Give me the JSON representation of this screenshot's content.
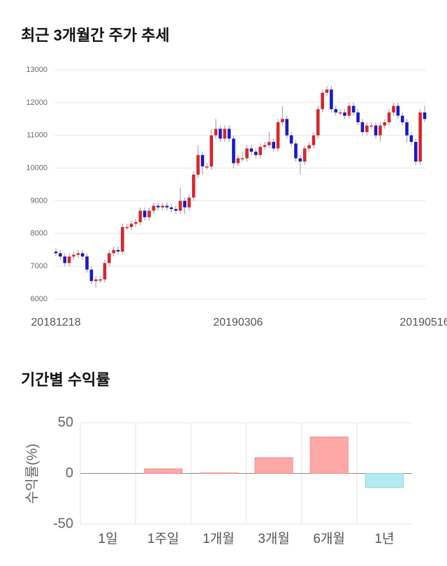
{
  "chart_data": [
    {
      "type": "candlestick",
      "title": "최근 3개월간 주가 추세",
      "categories": [
        "20181218",
        null,
        null,
        null,
        null,
        null,
        null,
        null,
        null,
        null,
        null,
        null,
        null,
        null,
        null,
        null,
        null,
        null,
        null,
        null,
        null,
        null,
        null,
        null,
        null,
        null,
        null,
        null,
        null,
        null,
        null,
        null,
        null,
        null,
        null,
        null,
        null,
        null,
        null,
        null,
        null,
        "20190306",
        null,
        null,
        null,
        null,
        null,
        null,
        null,
        null,
        null,
        null,
        null,
        null,
        null,
        null,
        null,
        null,
        null,
        null,
        null,
        null,
        null,
        null,
        null,
        null,
        null,
        null,
        null,
        null,
        null,
        null,
        null,
        null,
        null,
        null,
        null,
        null,
        null,
        null,
        null,
        null,
        null,
        "20190516"
      ],
      "open": [
        7450,
        7400,
        7300,
        7100,
        7300,
        7350,
        7400,
        7300,
        6900,
        6550,
        6600,
        6600,
        7100,
        7400,
        7500,
        7450,
        8200,
        8200,
        8300,
        8350,
        8700,
        8500,
        8700,
        8850,
        8800,
        8850,
        8800,
        8750,
        8700,
        9000,
        8800,
        9100,
        9800,
        10400,
        10050,
        10050,
        11000,
        11200,
        10900,
        11200,
        10900,
        10150,
        10300,
        10300,
        10600,
        10500,
        10400,
        10650,
        10700,
        10800,
        10600,
        11400,
        11500,
        11000,
        10750,
        10300,
        10200,
        10600,
        10700,
        11000,
        11800,
        12300,
        12400,
        11800,
        11700,
        11700,
        11600,
        11900,
        11700,
        11400,
        11100,
        11300,
        11300,
        11000,
        11300,
        11400,
        11700,
        11900,
        11600,
        11400,
        11000,
        10800,
        10200,
        11700
      ],
      "high": [
        7550,
        7500,
        7400,
        7400,
        7450,
        7500,
        7500,
        7400,
        7000,
        6700,
        6700,
        7200,
        7500,
        7600,
        7600,
        8300,
        8300,
        8400,
        8450,
        8800,
        8800,
        8800,
        8950,
        8950,
        8950,
        8950,
        8900,
        8850,
        9400,
        9100,
        9200,
        9900,
        10700,
        10500,
        10150,
        11200,
        11500,
        11300,
        11300,
        11300,
        11000,
        10400,
        10500,
        10700,
        10700,
        10600,
        10750,
        10800,
        11100,
        10900,
        11500,
        11900,
        11600,
        11100,
        10850,
        10400,
        10700,
        10800,
        11100,
        11900,
        12400,
        12500,
        12500,
        11900,
        11800,
        11800,
        12000,
        12000,
        11800,
        11500,
        11400,
        11400,
        11400,
        11400,
        11500,
        11800,
        12000,
        12000,
        11700,
        11500,
        11100,
        10900,
        11800,
        11900
      ],
      "low": [
        7300,
        7200,
        7000,
        7000,
        7200,
        7250,
        7200,
        6800,
        6450,
        6350,
        6500,
        6500,
        7000,
        7300,
        7350,
        7350,
        8100,
        8100,
        8200,
        8250,
        8400,
        8400,
        8600,
        8700,
        8700,
        8700,
        8650,
        8600,
        8600,
        8600,
        8700,
        9000,
        9700,
        9800,
        9950,
        9950,
        10900,
        10800,
        10800,
        10800,
        10000,
        10050,
        10200,
        10200,
        10400,
        10300,
        10300,
        10550,
        10600,
        10500,
        10500,
        11300,
        10900,
        10650,
        10200,
        9800,
        10100,
        10500,
        10600,
        10900,
        11700,
        12200,
        11700,
        11600,
        11600,
        11500,
        11500,
        11600,
        11300,
        11000,
        11000,
        11200,
        10900,
        10800,
        11200,
        11300,
        11600,
        11500,
        11300,
        10800,
        10700,
        10100,
        10100,
        11400
      ],
      "close": [
        7400,
        7300,
        7100,
        7300,
        7350,
        7400,
        7300,
        6900,
        6550,
        6600,
        6600,
        7100,
        7400,
        7500,
        7450,
        8200,
        8200,
        8300,
        8350,
        8700,
        8500,
        8700,
        8850,
        8800,
        8850,
        8800,
        8750,
        8700,
        9000,
        8800,
        9100,
        9800,
        10400,
        10050,
        10050,
        11000,
        11200,
        10900,
        11200,
        10900,
        10150,
        10300,
        10300,
        10600,
        10500,
        10400,
        10650,
        10700,
        10800,
        10600,
        11400,
        11500,
        11000,
        10750,
        10300,
        10200,
        10600,
        10700,
        11000,
        11800,
        12300,
        12400,
        11800,
        11700,
        11700,
        11600,
        11900,
        11700,
        11400,
        11100,
        11300,
        11300,
        11000,
        11300,
        11400,
        11700,
        11900,
        11600,
        11400,
        11000,
        10800,
        10200,
        11700,
        11500
      ],
      "up_color": "#d8262b",
      "down_color": "#1a1ac4",
      "ylim": [
        6000,
        13000
      ],
      "yticks": [
        6000,
        7000,
        8000,
        9000,
        10000,
        11000,
        12000,
        13000
      ],
      "grid": true
    },
    {
      "type": "bar",
      "title": "기간별 수익률",
      "ylabel": "수익률(%)",
      "categories": [
        "1일",
        "1주일",
        "1개월",
        "3개월",
        "6개월",
        "1년"
      ],
      "values": [
        0,
        4.5,
        0.5,
        15.5,
        36,
        -14
      ],
      "positive_color": "#ffa8a8",
      "negative_color": "#b2ebf2",
      "ylim": [
        -50,
        50
      ],
      "yticks": [
        -50,
        0,
        50
      ],
      "grid": true
    }
  ]
}
